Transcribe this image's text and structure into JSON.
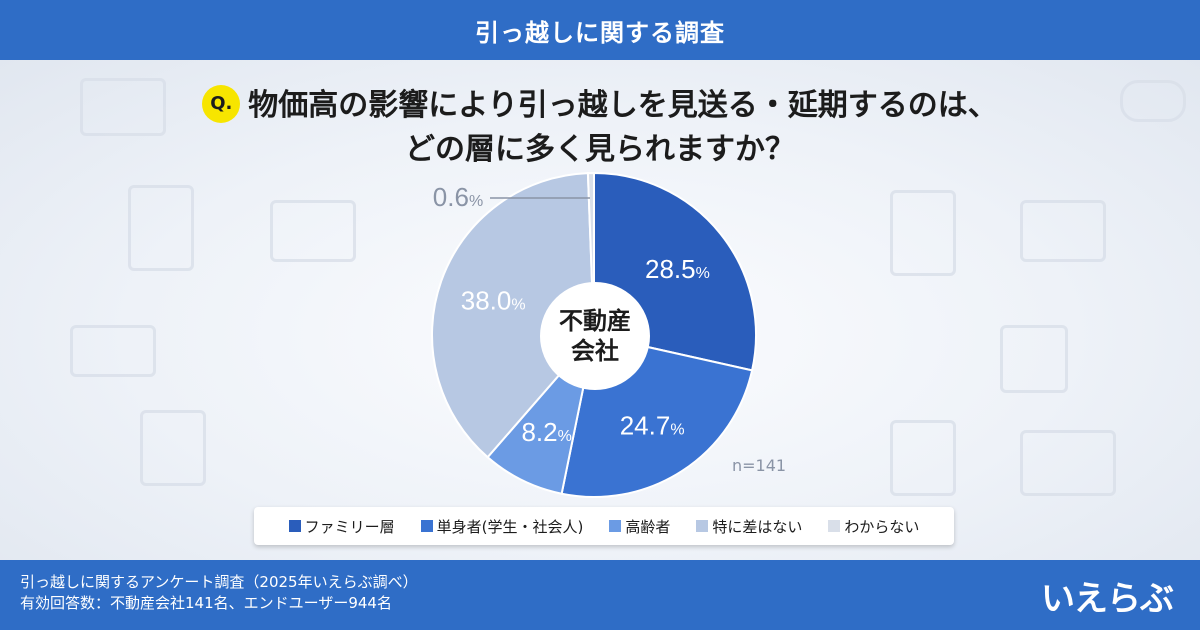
{
  "header": {
    "title": "引っ越しに関する調査"
  },
  "question": {
    "badge": "Q.",
    "line1": "物価高の影響により引っ越しを見送る・延期するのは、",
    "line2": "どの層に多く見られますか？"
  },
  "chart_data": {
    "type": "pie",
    "center_label": "不動産\n会社",
    "n": "n=141",
    "categories": [
      "ファミリー層",
      "単身者(学生・社会人)",
      "高齢者",
      "特に差はない",
      "わからない"
    ],
    "values": [
      28.5,
      24.7,
      8.2,
      38.0,
      0.6
    ],
    "labels": [
      "28.5",
      "24.7",
      "8.2",
      "38.0",
      "0.6"
    ],
    "unit": "%",
    "colors": [
      "#2a5dbb",
      "#3a73d2",
      "#6b9be4",
      "#b7c8e3",
      "#d9dfe9"
    ],
    "legend_placement": "bottom"
  },
  "footer": {
    "line1": "引っ越しに関するアンケート調査（2025年いえらぶ調べ）",
    "line2": "有効回答数：不動産会社141名、エンドユーザー944名"
  },
  "logo": {
    "text": "いえらぶ"
  }
}
